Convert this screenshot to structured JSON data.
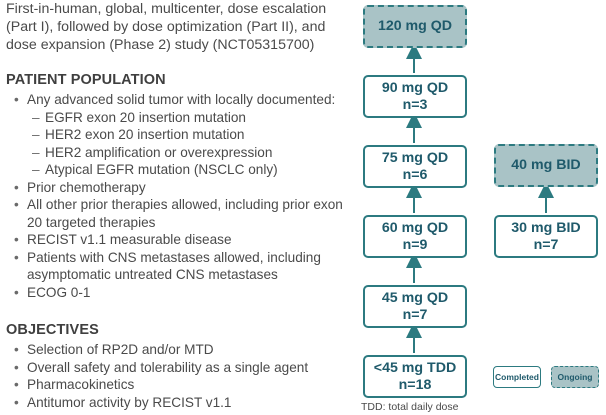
{
  "intro": "First-in-human, global, multicenter, dose escalation (Part I), followed by dose optimization (Part II), and dose expansion (Phase 2) study (NCT05315700)",
  "population": {
    "title": "PATIENT POPULATION",
    "items": [
      {
        "text": "Any advanced solid tumor with locally documented:"
      },
      {
        "text": "EGFR exon 20 insertion mutation",
        "sub": true
      },
      {
        "text": "HER2 exon 20 insertion mutation",
        "sub": true
      },
      {
        "text": "HER2 amplification or overexpression",
        "sub": true
      },
      {
        "text": "Atypical EGFR mutation (NSCLC only)",
        "sub": true
      },
      {
        "text": "Prior chemotherapy"
      },
      {
        "text": "All other prior therapies allowed, including prior exon 20 targeted therapies"
      },
      {
        "text": "RECIST v1.1 measurable disease"
      },
      {
        "text": "Patients with CNS metastases allowed, including asymptomatic untreated CNS metastases"
      },
      {
        "text": "ECOG 0-1"
      }
    ]
  },
  "objectives": {
    "title": "OBJECTIVES",
    "items": [
      {
        "text": "Selection of RP2D and/or MTD"
      },
      {
        "text": "Overall safety and tolerability as a single agent"
      },
      {
        "text": "Pharmacokinetics"
      },
      {
        "text": "Antitumor activity by RECIST v1.1"
      }
    ]
  },
  "qd_cohorts": [
    {
      "dose": "120 mg QD",
      "n": "",
      "status": "ongoing"
    },
    {
      "dose": "90 mg QD",
      "n": "n=3",
      "status": "completed"
    },
    {
      "dose": "75 mg QD",
      "n": "n=6",
      "status": "completed"
    },
    {
      "dose": "60 mg QD",
      "n": "n=9",
      "status": "completed"
    },
    {
      "dose": "45 mg QD",
      "n": "n=7",
      "status": "completed"
    },
    {
      "dose": "<45 mg TDD",
      "n": "n=18",
      "status": "completed"
    }
  ],
  "bid_cohorts": [
    {
      "dose": "40 mg BID",
      "n": "",
      "status": "ongoing"
    },
    {
      "dose": "30 mg BID",
      "n": "n=7",
      "status": "completed"
    }
  ],
  "legend": {
    "completed": "Completed",
    "ongoing": "Ongoing"
  },
  "footnote": "TDD: total daily dose",
  "colors": {
    "border": "#2c7a80",
    "ongoing_fill": "#a9c3c6",
    "text": "#1f5a6b"
  }
}
